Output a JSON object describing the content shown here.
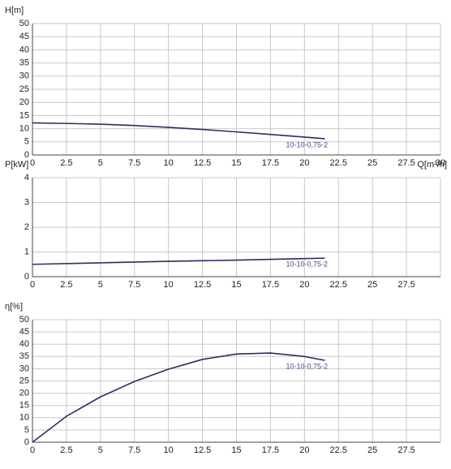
{
  "chart_data": [
    {
      "type": "line",
      "y_label": "H[m]",
      "x_label": "Q[m³/h]",
      "xlim": [
        0,
        30
      ],
      "xticks": [
        0,
        2.5,
        5,
        7.5,
        10,
        12.5,
        15,
        17.5,
        20,
        22.5,
        25,
        27.5,
        30
      ],
      "ylim": [
        0,
        50
      ],
      "yticks": [
        0,
        5,
        10,
        15,
        20,
        25,
        30,
        35,
        40,
        45,
        50
      ],
      "grid": true,
      "series": [
        {
          "name": "10-10-0,75-2",
          "color": "#2e2a6a",
          "x": [
            0,
            2.5,
            5,
            7.5,
            10,
            12.5,
            15,
            17.5,
            20,
            21.5
          ],
          "values": [
            12.2,
            12.0,
            11.7,
            11.2,
            10.5,
            9.7,
            8.8,
            7.8,
            6.8,
            6.2
          ]
        }
      ]
    },
    {
      "type": "line",
      "y_label": "P[kW]",
      "xlim": [
        0,
        30
      ],
      "xticks": [
        0,
        2.5,
        5,
        7.5,
        10,
        12.5,
        15,
        17.5,
        20,
        22.5,
        25,
        27.5
      ],
      "ylim": [
        0,
        4
      ],
      "yticks": [
        0,
        1,
        2,
        3,
        4
      ],
      "grid": true,
      "series": [
        {
          "name": "10-10-0,75-2",
          "color": "#2e2a6a",
          "x": [
            0,
            5,
            10,
            15,
            20,
            21.5
          ],
          "values": [
            0.5,
            0.56,
            0.62,
            0.67,
            0.73,
            0.75
          ]
        }
      ]
    },
    {
      "type": "line",
      "y_label": "η[%]",
      "xlim": [
        0,
        30
      ],
      "xticks": [
        0,
        2.5,
        5,
        7.5,
        10,
        12.5,
        15,
        17.5,
        20,
        22.5,
        25,
        27.5
      ],
      "ylim": [
        0,
        50
      ],
      "yticks": [
        0,
        5,
        10,
        15,
        20,
        25,
        30,
        35,
        40,
        45,
        50
      ],
      "grid": true,
      "series": [
        {
          "name": "10-10-0,75-2",
          "color": "#2e2a6a",
          "x": [
            0,
            2.5,
            5,
            7.5,
            10,
            12.5,
            15,
            17.5,
            20,
            21.5
          ],
          "values": [
            0,
            10.6,
            18.5,
            24.8,
            29.8,
            33.8,
            36,
            36.4,
            35,
            33.4
          ]
        }
      ]
    }
  ]
}
